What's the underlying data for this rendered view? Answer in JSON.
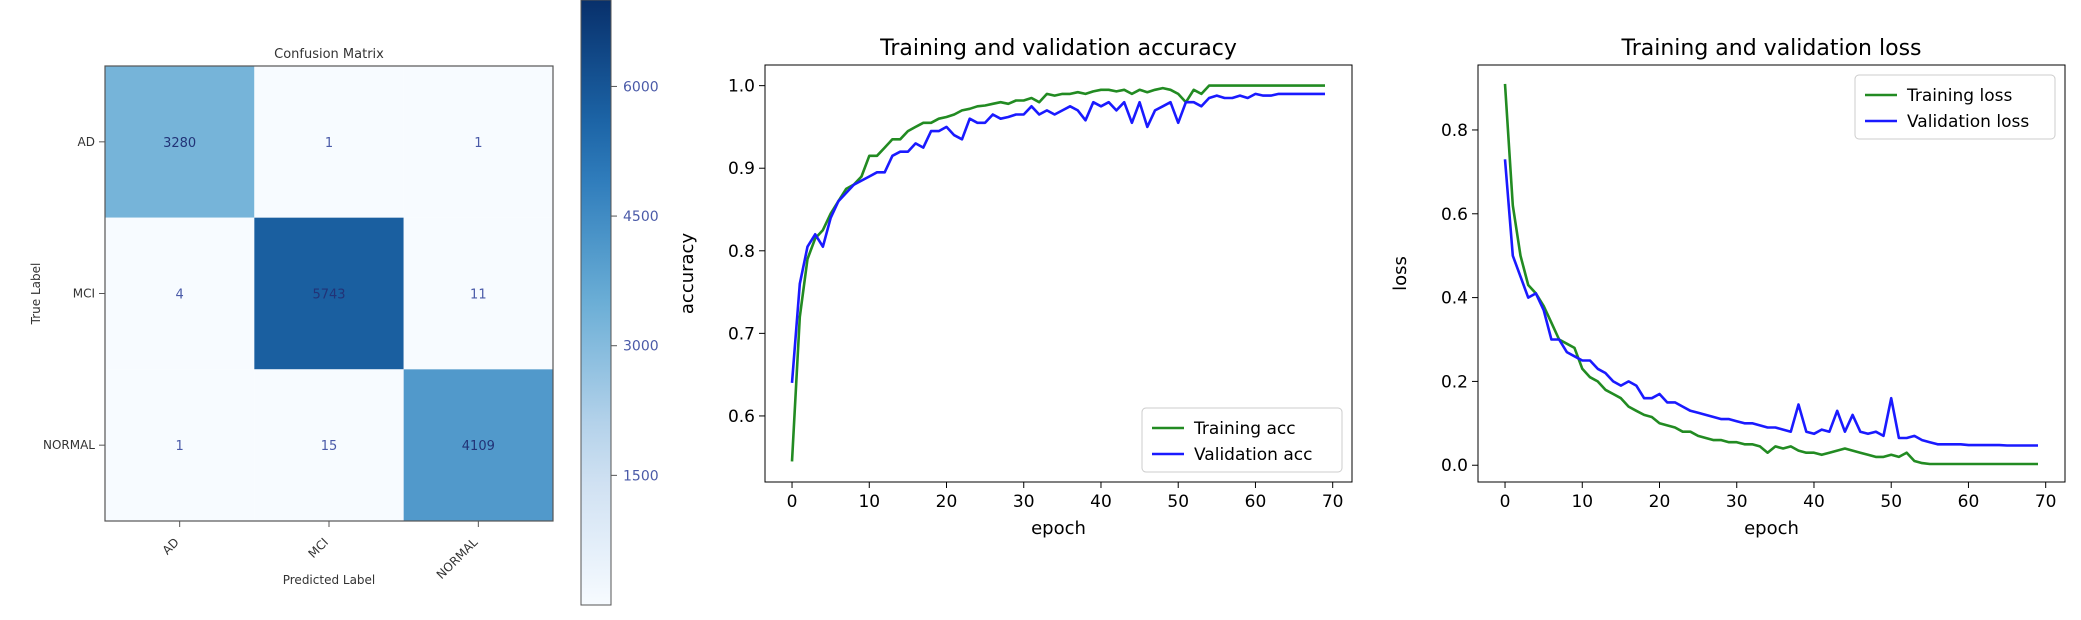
{
  "chart_data": [
    {
      "type": "heatmap",
      "title": "Confusion Matrix",
      "xlabel": "Predicted Label",
      "ylabel": "True Label",
      "x_categories": [
        "AD",
        "MCI",
        "NORMAL"
      ],
      "y_categories": [
        "AD",
        "MCI",
        "NORMAL"
      ],
      "values": [
        [
          3280,
          1,
          1
        ],
        [
          4,
          5743,
          11
        ],
        [
          1,
          15,
          4109
        ]
      ],
      "colorbar": {
        "ticks": [
          1500,
          3000,
          4500,
          6000
        ],
        "range": [
          0,
          7000
        ],
        "colormap": "Blues"
      }
    },
    {
      "type": "line",
      "title": "Training and validation accuracy",
      "xlabel": "epoch",
      "ylabel": "accuracy",
      "xlim": [
        -3.5,
        72.5
      ],
      "ylim": [
        0.52,
        1.025
      ],
      "xticks": [
        0,
        10,
        20,
        30,
        40,
        50,
        60,
        70
      ],
      "yticks": [
        0.6,
        0.7,
        0.8,
        0.9,
        1.0
      ],
      "ytick_labels": [
        "0.6",
        "0.7",
        "0.8",
        "0.9",
        "1.0"
      ],
      "legend_position": "bottom-right",
      "series": [
        {
          "name": "Training acc",
          "color": "#228b22",
          "values": [
            0.545,
            0.72,
            0.79,
            0.815,
            0.825,
            0.845,
            0.86,
            0.875,
            0.88,
            0.89,
            0.915,
            0.915,
            0.925,
            0.935,
            0.935,
            0.945,
            0.95,
            0.955,
            0.955,
            0.96,
            0.962,
            0.965,
            0.97,
            0.972,
            0.975,
            0.976,
            0.978,
            0.98,
            0.978,
            0.982,
            0.982,
            0.985,
            0.98,
            0.99,
            0.988,
            0.99,
            0.99,
            0.992,
            0.99,
            0.993,
            0.995,
            0.995,
            0.993,
            0.995,
            0.99,
            0.995,
            0.992,
            0.995,
            0.997,
            0.995,
            0.99,
            0.98,
            0.995,
            0.99,
            1.0,
            1.0,
            1.0,
            1.0,
            1.0,
            1.0,
            1.0,
            1.0,
            1.0,
            1.0,
            1.0,
            1.0,
            1.0,
            1.0,
            1.0,
            1.0
          ]
        },
        {
          "name": "Validation acc",
          "color": "#1a1aff",
          "values": [
            0.64,
            0.76,
            0.805,
            0.82,
            0.805,
            0.84,
            0.86,
            0.87,
            0.88,
            0.885,
            0.89,
            0.895,
            0.895,
            0.915,
            0.92,
            0.92,
            0.93,
            0.925,
            0.945,
            0.945,
            0.95,
            0.94,
            0.935,
            0.96,
            0.955,
            0.955,
            0.965,
            0.96,
            0.962,
            0.965,
            0.965,
            0.975,
            0.965,
            0.97,
            0.965,
            0.97,
            0.975,
            0.97,
            0.958,
            0.98,
            0.975,
            0.98,
            0.97,
            0.98,
            0.955,
            0.98,
            0.95,
            0.97,
            0.975,
            0.98,
            0.955,
            0.98,
            0.98,
            0.975,
            0.985,
            0.988,
            0.985,
            0.985,
            0.988,
            0.985,
            0.99,
            0.988,
            0.988,
            0.99,
            0.99,
            0.99,
            0.99,
            0.99,
            0.99,
            0.99
          ]
        }
      ]
    },
    {
      "type": "line",
      "title": "Training and validation loss",
      "xlabel": "epoch",
      "ylabel": "loss",
      "xlim": [
        -3.5,
        72.5
      ],
      "ylim": [
        -0.04,
        0.955
      ],
      "xticks": [
        0,
        10,
        20,
        30,
        40,
        50,
        60,
        70
      ],
      "yticks": [
        0.0,
        0.2,
        0.4,
        0.6,
        0.8
      ],
      "ytick_labels": [
        "0.0",
        "0.2",
        "0.4",
        "0.6",
        "0.8"
      ],
      "legend_position": "top-right",
      "series": [
        {
          "name": "Training loss",
          "color": "#228b22",
          "values": [
            0.91,
            0.62,
            0.5,
            0.43,
            0.41,
            0.38,
            0.34,
            0.3,
            0.29,
            0.28,
            0.23,
            0.21,
            0.2,
            0.18,
            0.17,
            0.16,
            0.14,
            0.13,
            0.12,
            0.115,
            0.1,
            0.095,
            0.09,
            0.08,
            0.08,
            0.07,
            0.065,
            0.06,
            0.06,
            0.055,
            0.055,
            0.05,
            0.05,
            0.045,
            0.03,
            0.045,
            0.04,
            0.045,
            0.035,
            0.03,
            0.03,
            0.025,
            0.03,
            0.035,
            0.04,
            0.035,
            0.03,
            0.025,
            0.02,
            0.02,
            0.025,
            0.02,
            0.03,
            0.01,
            0.005,
            0.003,
            0.003,
            0.003,
            0.003,
            0.003,
            0.003,
            0.003,
            0.003,
            0.003,
            0.003,
            0.003,
            0.003,
            0.003,
            0.003,
            0.003
          ]
        },
        {
          "name": "Validation loss",
          "color": "#1a1aff",
          "values": [
            0.73,
            0.5,
            0.45,
            0.4,
            0.41,
            0.37,
            0.3,
            0.3,
            0.27,
            0.26,
            0.25,
            0.25,
            0.23,
            0.22,
            0.2,
            0.19,
            0.2,
            0.19,
            0.16,
            0.16,
            0.17,
            0.15,
            0.15,
            0.14,
            0.13,
            0.125,
            0.12,
            0.115,
            0.11,
            0.11,
            0.105,
            0.1,
            0.1,
            0.095,
            0.09,
            0.09,
            0.085,
            0.08,
            0.145,
            0.08,
            0.075,
            0.085,
            0.08,
            0.13,
            0.08,
            0.12,
            0.08,
            0.075,
            0.08,
            0.07,
            0.16,
            0.065,
            0.065,
            0.07,
            0.06,
            0.055,
            0.05,
            0.05,
            0.05,
            0.05,
            0.048,
            0.048,
            0.048,
            0.048,
            0.048,
            0.047,
            0.047,
            0.047,
            0.047,
            0.047
          ]
        }
      ]
    }
  ]
}
